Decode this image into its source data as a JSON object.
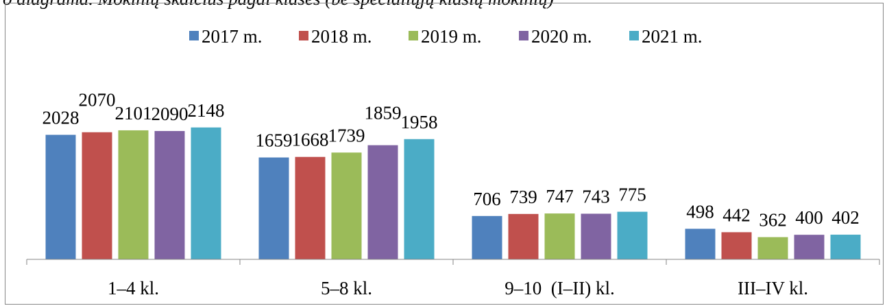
{
  "caption_fragment": "o diagrama. Mokinių skaičius pagal klases (be specialiųjų klasių mokinių)",
  "chart_data": {
    "type": "bar",
    "categories": [
      "1–4 kl.",
      "5–8 kl.",
      "9–10  (I–II) kl.",
      "III–IV kl."
    ],
    "series": [
      {
        "name": "2017 m.",
        "color": "#4f81bd",
        "values": [
          2028,
          1659,
          706,
          498
        ]
      },
      {
        "name": "2018 m.",
        "color": "#c0504d",
        "values": [
          2070,
          1668,
          739,
          442
        ]
      },
      {
        "name": "2019 m.",
        "color": "#9bbb59",
        "values": [
          2101,
          1739,
          747,
          362
        ]
      },
      {
        "name": "2020 m.",
        "color": "#8064a2",
        "values": [
          2090,
          1859,
          743,
          400
        ]
      },
      {
        "name": "2021 m.",
        "color": "#4bacc6",
        "values": [
          2148,
          1958,
          775,
          402
        ]
      }
    ],
    "title": "",
    "xlabel": "",
    "ylabel": "",
    "ylim": [
      0,
      3000
    ],
    "grid": false,
    "legend": "top"
  }
}
